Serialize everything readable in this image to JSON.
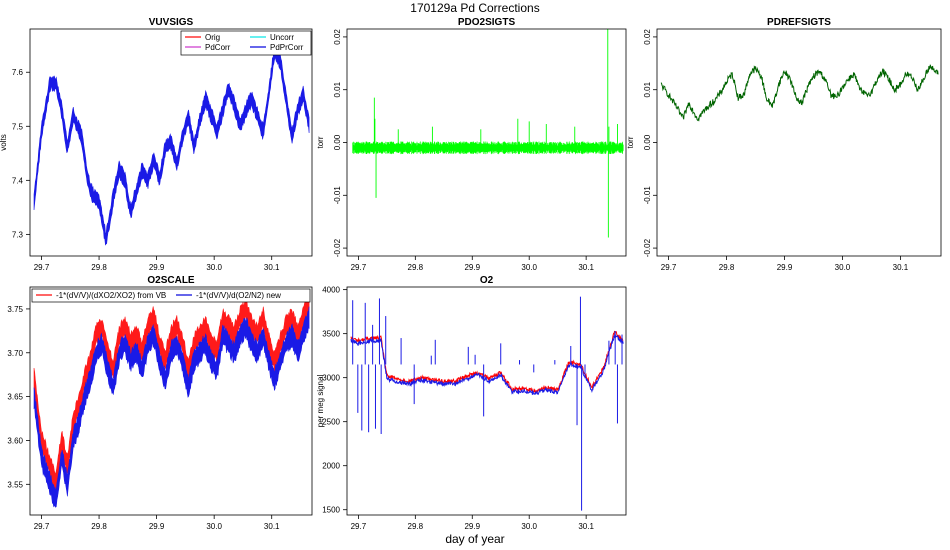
{
  "figure": {
    "title": "170129a   Pd Corrections",
    "xlabel": "day of year"
  },
  "chart_data": [
    {
      "id": "vuvsigs",
      "type": "line",
      "title": "VUVSIGS",
      "ylabel": "volts",
      "xlim": [
        29.68,
        30.17
      ],
      "ylim": [
        7.26,
        7.68
      ],
      "xticks": [
        29.7,
        29.8,
        29.9,
        30.0,
        30.1
      ],
      "xtick_labels": [
        "29.7",
        "29.8",
        "29.9",
        "30.0",
        "30.1"
      ],
      "yticks": [
        7.3,
        7.4,
        7.5,
        7.6
      ],
      "ytick_labels": [
        "7.3",
        "7.4",
        "7.5",
        "7.6"
      ],
      "band_width": 0.012,
      "legend": {
        "position": "top-right",
        "columns": 2,
        "entries": [
          {
            "label": "Orig",
            "color": "#ff0000"
          },
          {
            "label": "Uncorr",
            "color": "#00e5e5"
          },
          {
            "label": "PdCorr",
            "color": "#cc33cc"
          },
          {
            "label": "PdPrCorr",
            "color": "#0000dd"
          }
        ]
      },
      "series": [
        {
          "name": "PdPrCorr",
          "color": "#1a1ae6",
          "x": [
            29.687,
            29.7,
            29.715,
            29.725,
            29.735,
            29.745,
            29.755,
            29.77,
            29.78,
            29.79,
            29.8,
            29.812,
            29.825,
            29.835,
            29.845,
            29.855,
            29.865,
            29.875,
            29.885,
            29.895,
            29.905,
            29.915,
            29.925,
            29.935,
            29.945,
            29.955,
            29.965,
            29.975,
            29.985,
            29.995,
            30.005,
            30.015,
            30.025,
            30.035,
            30.045,
            30.055,
            30.065,
            30.075,
            30.085,
            30.095,
            30.105,
            30.115,
            30.125,
            30.135,
            30.145,
            30.155,
            30.165
          ],
          "y": [
            7.36,
            7.49,
            7.58,
            7.58,
            7.53,
            7.46,
            7.52,
            7.48,
            7.4,
            7.37,
            7.36,
            7.29,
            7.37,
            7.42,
            7.4,
            7.34,
            7.38,
            7.42,
            7.4,
            7.44,
            7.4,
            7.46,
            7.47,
            7.43,
            7.48,
            7.52,
            7.46,
            7.51,
            7.55,
            7.52,
            7.49,
            7.53,
            7.57,
            7.54,
            7.5,
            7.53,
            7.55,
            7.52,
            7.49,
            7.56,
            7.64,
            7.62,
            7.55,
            7.48,
            7.53,
            7.56,
            7.5
          ]
        }
      ]
    },
    {
      "id": "pdo2sigts",
      "type": "line",
      "title": "PDO2SIGTS",
      "ylabel": "torr",
      "xlim": [
        29.68,
        30.17
      ],
      "ylim": [
        -0.0215,
        0.0215
      ],
      "xticks": [
        29.7,
        29.8,
        29.9,
        30.0,
        30.1
      ],
      "xtick_labels": [
        "29.7",
        "29.8",
        "29.9",
        "30.0",
        "30.1"
      ],
      "yticks": [
        -0.02,
        -0.01,
        0.0,
        0.01,
        0.02
      ],
      "ytick_labels": [
        "-0.02",
        "-0.01",
        "0.00",
        "0.01",
        "0.02"
      ],
      "series": [
        {
          "name": "PDO2SIGTS",
          "color": "#00ff00",
          "base": -0.001,
          "noise": 0.0008,
          "spikes": [
            {
              "x": 29.728,
              "y": 0.0085
            },
            {
              "x": 29.729,
              "y": 0.0045
            },
            {
              "x": 29.731,
              "y": -0.0105
            },
            {
              "x": 29.77,
              "y": 0.0025
            },
            {
              "x": 29.83,
              "y": 0.003
            },
            {
              "x": 29.915,
              "y": 0.0025
            },
            {
              "x": 29.98,
              "y": 0.0045
            },
            {
              "x": 30.0,
              "y": 0.004
            },
            {
              "x": 30.03,
              "y": 0.0035
            },
            {
              "x": 30.08,
              "y": 0.003
            },
            {
              "x": 30.138,
              "y": 0.0215
            },
            {
              "x": 30.139,
              "y": -0.018
            },
            {
              "x": 30.14,
              "y": 0.003
            },
            {
              "x": 30.155,
              "y": 0.0035
            }
          ]
        }
      ]
    },
    {
      "id": "pdrefsigts",
      "type": "line",
      "title": "PDREFSIGTS",
      "ylabel": "torr",
      "xlim": [
        29.68,
        30.17
      ],
      "ylim": [
        -0.0215,
        0.0215
      ],
      "xticks": [
        29.7,
        29.8,
        29.9,
        30.0,
        30.1
      ],
      "xtick_labels": [
        "29.7",
        "29.8",
        "29.9",
        "30.0",
        "30.1"
      ],
      "yticks": [
        -0.02,
        -0.01,
        0.0,
        0.01,
        0.02
      ],
      "ytick_labels": [
        "-0.02",
        "-0.01",
        "0.00",
        "0.01",
        "0.02"
      ],
      "series": [
        {
          "name": "PDREFSIGTS",
          "color": "#006400",
          "x": [
            29.687,
            29.7,
            29.715,
            29.725,
            29.735,
            29.75,
            29.765,
            29.78,
            29.79,
            29.8,
            29.81,
            29.82,
            29.83,
            29.84,
            29.85,
            29.86,
            29.87,
            29.88,
            29.89,
            29.9,
            29.91,
            29.92,
            29.93,
            29.94,
            29.95,
            29.96,
            29.97,
            29.98,
            29.99,
            30.0,
            30.01,
            30.02,
            30.03,
            30.04,
            30.05,
            30.06,
            30.07,
            30.08,
            30.09,
            30.1,
            30.11,
            30.12,
            30.13,
            30.14,
            30.15,
            30.16,
            30.165
          ],
          "y": [
            0.011,
            0.009,
            0.0065,
            0.0045,
            0.0075,
            0.0045,
            0.0065,
            0.008,
            0.0095,
            0.0115,
            0.013,
            0.0085,
            0.009,
            0.013,
            0.014,
            0.0125,
            0.008,
            0.007,
            0.011,
            0.0135,
            0.012,
            0.0085,
            0.0075,
            0.0105,
            0.0125,
            0.0135,
            0.012,
            0.009,
            0.0085,
            0.0105,
            0.012,
            0.013,
            0.01,
            0.009,
            0.0095,
            0.012,
            0.0135,
            0.012,
            0.01,
            0.011,
            0.013,
            0.0125,
            0.01,
            0.012,
            0.0145,
            0.0135,
            0.013
          ]
        }
      ]
    },
    {
      "id": "o2scale",
      "type": "line",
      "title": "O2SCALE",
      "xlim": [
        29.68,
        30.17
      ],
      "ylim": [
        3.515,
        3.775
      ],
      "xticks": [
        29.7,
        29.8,
        29.9,
        30.0,
        30.1
      ],
      "xtick_labels": [
        "29.7",
        "29.8",
        "29.9",
        "30.0",
        "30.1"
      ],
      "yticks": [
        3.55,
        3.6,
        3.65,
        3.7,
        3.75
      ],
      "ytick_labels": [
        "3.55",
        "3.60",
        "3.65",
        "3.70",
        "3.75"
      ],
      "band_width": 0.01,
      "legend": {
        "position": "top",
        "columns": 2,
        "entries": [
          {
            "label": "-1*(dV/V)/(dXO2/XO2) from VB",
            "color": "#ff0000"
          },
          {
            "label": "-1*(dV/V)/d(O2/N2) new",
            "color": "#0000dd"
          }
        ]
      },
      "series": [
        {
          "name": "-1*(dV/V)/(dXO2/XO2) from VB",
          "color": "#ff1a1a",
          "x": [
            29.687,
            29.7,
            29.715,
            29.725,
            29.735,
            29.745,
            29.755,
            29.765,
            29.775,
            29.785,
            29.795,
            29.805,
            29.815,
            29.825,
            29.835,
            29.845,
            29.855,
            29.865,
            29.875,
            29.885,
            29.895,
            29.905,
            29.915,
            29.925,
            29.935,
            29.945,
            29.955,
            29.965,
            29.975,
            29.985,
            29.995,
            30.005,
            30.015,
            30.025,
            30.035,
            30.045,
            30.055,
            30.065,
            30.075,
            30.085,
            30.095,
            30.105,
            30.115,
            30.125,
            30.135,
            30.145,
            30.155,
            30.165
          ],
          "y": [
            3.67,
            3.6,
            3.57,
            3.55,
            3.6,
            3.57,
            3.62,
            3.64,
            3.67,
            3.69,
            3.72,
            3.73,
            3.7,
            3.68,
            3.72,
            3.73,
            3.71,
            3.72,
            3.7,
            3.73,
            3.74,
            3.71,
            3.69,
            3.72,
            3.73,
            3.71,
            3.68,
            3.71,
            3.72,
            3.73,
            3.71,
            3.7,
            3.74,
            3.73,
            3.72,
            3.74,
            3.75,
            3.73,
            3.72,
            3.74,
            3.71,
            3.69,
            3.71,
            3.73,
            3.74,
            3.72,
            3.74,
            3.76
          ]
        },
        {
          "name": "-1*(dV/V)/d(O2/N2) new",
          "color": "#1a1ae6",
          "x": [
            29.687,
            29.7,
            29.715,
            29.725,
            29.735,
            29.745,
            29.755,
            29.765,
            29.775,
            29.785,
            29.795,
            29.805,
            29.815,
            29.825,
            29.835,
            29.845,
            29.855,
            29.865,
            29.875,
            29.885,
            29.895,
            29.905,
            29.915,
            29.925,
            29.935,
            29.945,
            29.955,
            29.965,
            29.975,
            29.985,
            29.995,
            30.005,
            30.015,
            30.025,
            30.035,
            30.045,
            30.055,
            30.065,
            30.075,
            30.085,
            30.095,
            30.105,
            30.115,
            30.125,
            30.135,
            30.145,
            30.155,
            30.165
          ],
          "y": [
            3.65,
            3.58,
            3.55,
            3.53,
            3.58,
            3.55,
            3.6,
            3.62,
            3.65,
            3.67,
            3.7,
            3.71,
            3.68,
            3.66,
            3.7,
            3.71,
            3.69,
            3.7,
            3.68,
            3.71,
            3.72,
            3.69,
            3.67,
            3.7,
            3.71,
            3.69,
            3.66,
            3.69,
            3.7,
            3.71,
            3.69,
            3.68,
            3.72,
            3.71,
            3.7,
            3.72,
            3.73,
            3.71,
            3.7,
            3.72,
            3.69,
            3.67,
            3.69,
            3.71,
            3.72,
            3.7,
            3.72,
            3.74
          ]
        }
      ]
    },
    {
      "id": "o2",
      "type": "line",
      "title": "O2",
      "ylabel": "per meg signal",
      "xlim": [
        29.68,
        30.17
      ],
      "ylim": [
        1440,
        4030
      ],
      "xticks": [
        29.7,
        29.8,
        29.9,
        30.0,
        30.1
      ],
      "xtick_labels": [
        "29.7",
        "29.8",
        "29.9",
        "30.0",
        "30.1"
      ],
      "yticks": [
        1500,
        2000,
        2500,
        3000,
        3500,
        4000
      ],
      "ytick_labels": [
        "1500",
        "2000",
        "2500",
        "3000",
        "3500",
        "4000"
      ],
      "series": [
        {
          "name": "O2 original",
          "color": "#ff0000",
          "x": [
            29.687,
            29.7,
            29.72,
            29.74,
            29.75,
            29.77,
            29.79,
            29.81,
            29.83,
            29.85,
            29.87,
            29.89,
            29.91,
            29.93,
            29.95,
            29.97,
            29.99,
            30.01,
            30.03,
            30.05,
            30.07,
            30.09,
            30.11,
            30.13,
            30.15,
            30.165
          ],
          "y": [
            3450,
            3420,
            3450,
            3450,
            3020,
            2980,
            2960,
            3000,
            2980,
            2960,
            2960,
            3020,
            3060,
            2990,
            3060,
            2870,
            2880,
            2850,
            2890,
            2860,
            3180,
            3150,
            2890,
            3100,
            3520,
            3430
          ]
        },
        {
          "name": "O2 new",
          "color": "#1a1ae6",
          "x": [
            29.687,
            29.7,
            29.72,
            29.74,
            29.75,
            29.77,
            29.79,
            29.81,
            29.83,
            29.85,
            29.87,
            29.89,
            29.91,
            29.93,
            29.95,
            29.97,
            29.99,
            30.01,
            30.03,
            30.05,
            30.07,
            30.09,
            30.11,
            30.13,
            30.15,
            30.165
          ],
          "y": [
            3420,
            3390,
            3420,
            3420,
            2990,
            2950,
            2930,
            2970,
            2950,
            2930,
            2930,
            2990,
            3030,
            2960,
            3030,
            2840,
            2850,
            2820,
            2860,
            2830,
            3150,
            3120,
            2860,
            3070,
            3490,
            3400
          ]
        }
      ],
      "spikes": [
        {
          "x": 29.69,
          "y": 3880
        },
        {
          "x": 29.699,
          "y": 2600
        },
        {
          "x": 29.706,
          "y": 2400
        },
        {
          "x": 29.712,
          "y": 3850
        },
        {
          "x": 29.718,
          "y": 2380
        },
        {
          "x": 29.725,
          "y": 3600
        },
        {
          "x": 29.73,
          "y": 2420
        },
        {
          "x": 29.737,
          "y": 3900
        },
        {
          "x": 29.74,
          "y": 2360
        },
        {
          "x": 29.748,
          "y": 3700
        },
        {
          "x": 29.775,
          "y": 3450
        },
        {
          "x": 29.798,
          "y": 2700
        },
        {
          "x": 29.828,
          "y": 3250
        },
        {
          "x": 29.835,
          "y": 3430
        },
        {
          "x": 29.893,
          "y": 3350
        },
        {
          "x": 29.905,
          "y": 3260
        },
        {
          "x": 29.92,
          "y": 2560
        },
        {
          "x": 29.95,
          "y": 3390
        },
        {
          "x": 29.983,
          "y": 3200
        },
        {
          "x": 30.008,
          "y": 3060
        },
        {
          "x": 30.045,
          "y": 3200
        },
        {
          "x": 30.073,
          "y": 3360
        },
        {
          "x": 30.084,
          "y": 2460
        },
        {
          "x": 30.09,
          "y": 3920
        },
        {
          "x": 30.092,
          "y": 1490
        },
        {
          "x": 30.098,
          "y": 3000
        },
        {
          "x": 30.14,
          "y": 3420
        },
        {
          "x": 30.151,
          "y": 3530
        },
        {
          "x": 30.155,
          "y": 2480
        },
        {
          "x": 30.163,
          "y": 3490
        }
      ]
    }
  ]
}
